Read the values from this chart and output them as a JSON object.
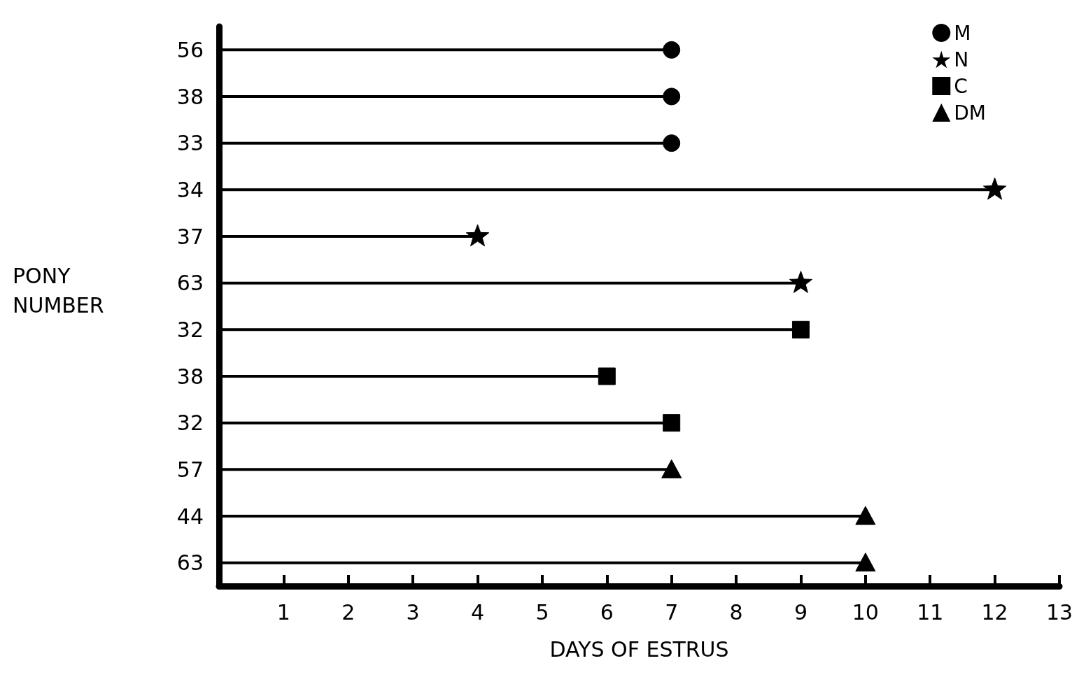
{
  "chart_data": {
    "type": "lollipop",
    "orientation": "horizontal",
    "xlabel": "DAYS OF ESTRUS",
    "ylabel": "PONY NUMBER",
    "categories": [
      "56",
      "38",
      "33",
      "34",
      "37",
      "63",
      "32",
      "38",
      "32",
      "57",
      "44",
      "63"
    ],
    "xlim": [
      0,
      13
    ],
    "xticks": [
      1,
      2,
      3,
      4,
      5,
      6,
      7,
      8,
      9,
      10,
      11,
      12,
      13
    ],
    "grid": false,
    "legend": "top right",
    "series": [
      {
        "name": "M",
        "color": "#000000",
        "marker": "circle",
        "values": [
          7,
          7,
          7,
          null,
          null,
          null,
          null,
          null,
          null,
          null,
          null,
          null
        ]
      },
      {
        "name": "N",
        "color": "#000000",
        "marker": "star",
        "values": [
          null,
          null,
          null,
          12,
          4,
          9,
          null,
          null,
          null,
          null,
          null,
          null
        ]
      },
      {
        "name": "C",
        "color": "#000000",
        "marker": "square",
        "values": [
          null,
          null,
          null,
          null,
          null,
          null,
          9,
          6,
          7,
          null,
          null,
          null
        ]
      },
      {
        "name": "DM",
        "color": "#000000",
        "marker": "triangle",
        "values": [
          null,
          null,
          null,
          null,
          null,
          null,
          null,
          null,
          null,
          7,
          10,
          10
        ]
      }
    ]
  }
}
